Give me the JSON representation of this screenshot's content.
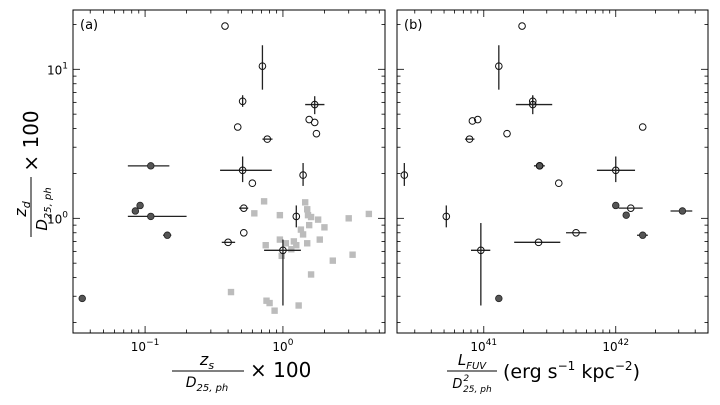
{
  "chart_data": [
    {
      "type": "scatter",
      "panel_label": "(a)",
      "xscale": "log",
      "yscale": "log",
      "xlim": [
        0.03,
        5.5
      ],
      "ylim": [
        0.17,
        25
      ],
      "xticks": [
        {
          "value": 0.1,
          "label": "10",
          "exp": "−1"
        },
        {
          "value": 1,
          "label": "10",
          "exp": "0"
        }
      ],
      "yticks": [
        {
          "value": 1,
          "label": "10",
          "exp": "0"
        },
        {
          "value": 10,
          "label": "10",
          "exp": "1"
        }
      ],
      "xlabel": {
        "numerator": "z",
        "num_sub": "s",
        "denominator": "D",
        "den_sub": "25, ph",
        "suffix": "× 100"
      },
      "ylabel": {
        "numerator": "z",
        "num_sub": "d",
        "denominator": "D",
        "den_sub": "25, ph",
        "suffix": "× 100"
      },
      "series": [
        {
          "name": "open circles",
          "marker": "open-circle",
          "points": [
            {
              "x": 0.38,
              "y": 19.5
            },
            {
              "x": 0.71,
              "y": 10.5,
              "ylo": 7.3,
              "yhi": 14.5
            },
            {
              "x": 0.51,
              "y": 6.1,
              "ylo": 5.6,
              "yhi": 6.7
            },
            {
              "x": 1.7,
              "y": 5.8,
              "xlo": 1.45,
              "xhi": 2.0,
              "ylo": 5.0,
              "yhi": 6.6
            },
            {
              "x": 0.47,
              "y": 4.1
            },
            {
              "x": 1.7,
              "y": 4.4
            },
            {
              "x": 1.55,
              "y": 4.6
            },
            {
              "x": 1.75,
              "y": 3.7
            },
            {
              "x": 0.77,
              "y": 3.4,
              "xlo": 0.71,
              "xhi": 0.84
            },
            {
              "x": 0.51,
              "y": 2.1,
              "xlo": 0.35,
              "xhi": 0.83,
              "ylo": 1.75,
              "yhi": 2.6
            },
            {
              "x": 1.4,
              "y": 1.95,
              "ylo": 1.65,
              "yhi": 2.35
            },
            {
              "x": 0.6,
              "y": 1.72
            },
            {
              "x": 0.52,
              "y": 1.17,
              "xlo": 0.48,
              "xhi": 0.56
            },
            {
              "x": 1.25,
              "y": 1.03,
              "ylo": 0.87,
              "yhi": 1.22
            },
            {
              "x": 0.52,
              "y": 0.8
            },
            {
              "x": 0.4,
              "y": 0.69,
              "xlo": 0.36,
              "xhi": 0.45
            },
            {
              "x": 1.0,
              "y": 0.61,
              "xlo": 0.73,
              "xhi": 1.35,
              "ylo": 0.26,
              "yhi": 0.72
            }
          ]
        },
        {
          "name": "filled circles",
          "marker": "filled-circle",
          "points": [
            {
              "x": 0.11,
              "y": 2.25,
              "xlo": 0.075,
              "xhi": 0.15
            },
            {
              "x": 0.092,
              "y": 1.22
            },
            {
              "x": 0.085,
              "y": 1.12
            },
            {
              "x": 0.11,
              "y": 1.03,
              "xlo": 0.075,
              "xhi": 0.2
            },
            {
              "x": 0.145,
              "y": 0.77,
              "xlo": 0.135,
              "xhi": 0.155
            },
            {
              "x": 0.035,
              "y": 0.29
            }
          ]
        },
        {
          "name": "gray squares",
          "marker": "gray-square",
          "points": [
            {
              "x": 0.73,
              "y": 1.3
            },
            {
              "x": 0.62,
              "y": 1.08
            },
            {
              "x": 0.95,
              "y": 1.05
            },
            {
              "x": 1.45,
              "y": 1.28
            },
            {
              "x": 1.5,
              "y": 1.15
            },
            {
              "x": 1.52,
              "y": 1.05
            },
            {
              "x": 1.6,
              "y": 1.02
            },
            {
              "x": 1.8,
              "y": 0.98
            },
            {
              "x": 2.0,
              "y": 0.87
            },
            {
              "x": 1.55,
              "y": 0.9
            },
            {
              "x": 1.35,
              "y": 0.84
            },
            {
              "x": 1.4,
              "y": 0.78
            },
            {
              "x": 1.85,
              "y": 0.72
            },
            {
              "x": 1.5,
              "y": 0.68
            },
            {
              "x": 1.2,
              "y": 0.7
            },
            {
              "x": 1.05,
              "y": 0.68
            },
            {
              "x": 0.95,
              "y": 0.72
            },
            {
              "x": 1.15,
              "y": 0.62
            },
            {
              "x": 1.25,
              "y": 0.66
            },
            {
              "x": 0.75,
              "y": 0.66
            },
            {
              "x": 0.98,
              "y": 0.56
            },
            {
              "x": 1.6,
              "y": 0.42
            },
            {
              "x": 2.3,
              "y": 0.52
            },
            {
              "x": 3.2,
              "y": 0.57
            },
            {
              "x": 3.0,
              "y": 1.0
            },
            {
              "x": 4.2,
              "y": 1.07
            },
            {
              "x": 0.42,
              "y": 0.32
            },
            {
              "x": 0.76,
              "y": 0.28
            },
            {
              "x": 0.8,
              "y": 0.27
            },
            {
              "x": 0.87,
              "y": 0.24
            },
            {
              "x": 1.3,
              "y": 0.26
            }
          ]
        }
      ]
    },
    {
      "type": "scatter",
      "panel_label": "(b)",
      "xscale": "log",
      "yscale": "log",
      "xlim": [
        2.2e+40,
        5e+42
      ],
      "ylim": [
        0.17,
        25
      ],
      "xticks": [
        {
          "value": 1e+41,
          "label": "10",
          "exp": "41"
        },
        {
          "value": 1e+42,
          "label": "10",
          "exp": "42"
        }
      ],
      "xlabel": {
        "numerator": "L",
        "num_sub": "FUV",
        "denominator": "D",
        "den_sup": "2",
        "den_sub": "25, ph",
        "suffix": "(erg s",
        "suffix_exp1": "−1",
        "suffix_mid": " kpc",
        "suffix_exp2": "−2",
        "suffix_end": ")"
      },
      "series": [
        {
          "name": "open circles",
          "marker": "open-circle",
          "points": [
            {
              "x": 1.95e+41,
              "y": 19.5
            },
            {
              "x": 1.3e+41,
              "y": 10.5,
              "ylo": 7.3,
              "yhi": 14.5
            },
            {
              "x": 2.35e+41,
              "y": 6.1,
              "ylo": 5.6,
              "yhi": 6.7
            },
            {
              "x": 2.35e+41,
              "y": 5.8,
              "xlo": 1.75e+41,
              "xhi": 3.3e+41,
              "ylo": 5.0,
              "yhi": 6.6
            },
            {
              "x": 8.2e+40,
              "y": 4.5
            },
            {
              "x": 9e+40,
              "y": 4.6
            },
            {
              "x": 1.6e+42,
              "y": 4.1
            },
            {
              "x": 1.5e+41,
              "y": 3.7
            },
            {
              "x": 7.8e+40,
              "y": 3.4,
              "xlo": 7.2e+40,
              "xhi": 8.5e+40
            },
            {
              "x": 2.65e+41,
              "y": 2.25
            },
            {
              "x": 1e+42,
              "y": 2.1,
              "xlo": 7.2e+41,
              "xhi": 1.4e+42,
              "ylo": 1.75,
              "yhi": 2.6
            },
            {
              "x": 2.5e+40,
              "y": 1.95,
              "ylo": 1.65,
              "yhi": 2.35
            },
            {
              "x": 3.7e+41,
              "y": 1.72
            },
            {
              "x": 1.3e+42,
              "y": 1.17,
              "xlo": 1.05e+42,
              "xhi": 1.6e+42
            },
            {
              "x": 5.2e+40,
              "y": 1.03,
              "ylo": 0.87,
              "yhi": 1.22
            },
            {
              "x": 5e+41,
              "y": 0.8,
              "xlo": 4.2e+41,
              "xhi": 6e+41
            },
            {
              "x": 2.6e+41,
              "y": 0.69,
              "xlo": 1.7e+41,
              "xhi": 3.8e+41
            },
            {
              "x": 9.5e+40,
              "y": 0.61,
              "xlo": 8e+40,
              "xhi": 1.12e+41,
              "ylo": 0.26,
              "yhi": 0.93
            }
          ]
        },
        {
          "name": "filled circles",
          "marker": "filled-circle",
          "points": [
            {
              "x": 2.65e+41,
              "y": 2.25,
              "xlo": 2.4e+41,
              "xhi": 2.9e+41
            },
            {
              "x": 1e+42,
              "y": 1.22
            },
            {
              "x": 1.2e+42,
              "y": 1.05
            },
            {
              "x": 3.2e+42,
              "y": 1.12,
              "xlo": 2.6e+42,
              "xhi": 3.8e+42
            },
            {
              "x": 1.6e+42,
              "y": 0.77,
              "xlo": 1.45e+42,
              "xhi": 1.75e+42
            },
            {
              "x": 1.3e+41,
              "y": 0.29
            }
          ]
        }
      ]
    }
  ]
}
